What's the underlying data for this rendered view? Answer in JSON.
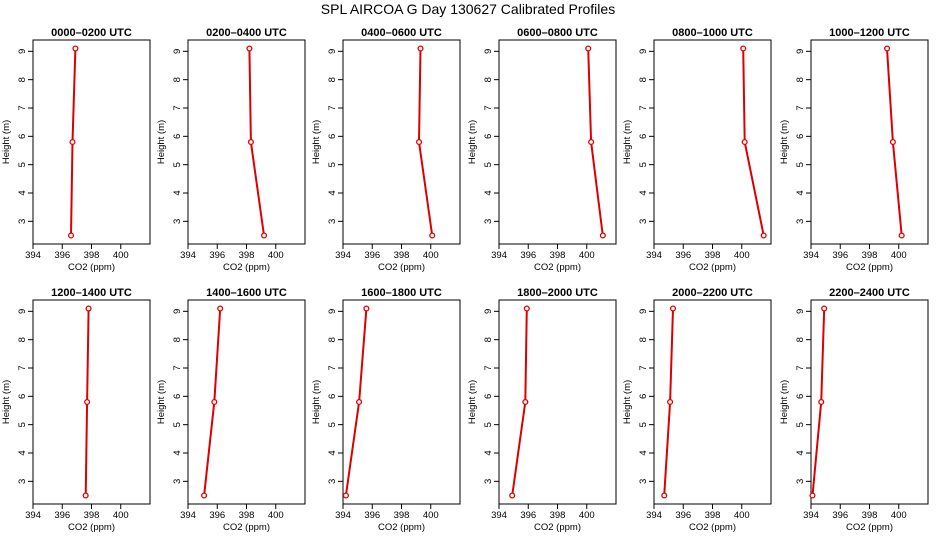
{
  "figure": {
    "title": "SPL AIRCOA G  Day 130627  Calibrated Profiles"
  },
  "chart_data": [
    {
      "type": "line",
      "title": "0000–0200 UTC",
      "xlabel": "CO2 (ppm)",
      "ylabel": "Height (m)",
      "xlim": [
        394,
        402
      ],
      "ylim": [
        2.2,
        9.4
      ],
      "xticks": [
        394,
        396,
        398,
        400
      ],
      "yticks": [
        3,
        4,
        5,
        6,
        7,
        8,
        9
      ],
      "series": [
        {
          "x": [
            396.6,
            396.7,
            396.9
          ],
          "y": [
            2.5,
            5.8,
            9.1
          ]
        }
      ]
    },
    {
      "type": "line",
      "title": "0200–0400 UTC",
      "xlabel": "CO2 (ppm)",
      "ylabel": "Height (m)",
      "xlim": [
        394,
        402
      ],
      "ylim": [
        2.2,
        9.4
      ],
      "xticks": [
        394,
        396,
        398,
        400
      ],
      "yticks": [
        3,
        4,
        5,
        6,
        7,
        8,
        9
      ],
      "series": [
        {
          "x": [
            399.2,
            398.3,
            398.2
          ],
          "y": [
            2.5,
            5.8,
            9.1
          ]
        }
      ]
    },
    {
      "type": "line",
      "title": "0400–0600 UTC",
      "xlabel": "CO2 (ppm)",
      "ylabel": "Height (m)",
      "xlim": [
        394,
        402
      ],
      "ylim": [
        2.2,
        9.4
      ],
      "xticks": [
        394,
        396,
        398,
        400
      ],
      "yticks": [
        3,
        4,
        5,
        6,
        7,
        8,
        9
      ],
      "series": [
        {
          "x": [
            400.1,
            399.2,
            399.3
          ],
          "y": [
            2.5,
            5.8,
            9.1
          ]
        }
      ]
    },
    {
      "type": "line",
      "title": "0600–0800 UTC",
      "xlabel": "CO2 (ppm)",
      "ylabel": "Height (m)",
      "xlim": [
        394,
        402
      ],
      "ylim": [
        2.2,
        9.4
      ],
      "xticks": [
        394,
        396,
        398,
        400
      ],
      "yticks": [
        3,
        4,
        5,
        6,
        7,
        8,
        9
      ],
      "series": [
        {
          "x": [
            401.1,
            400.3,
            400.1
          ],
          "y": [
            2.5,
            5.8,
            9.1
          ]
        }
      ]
    },
    {
      "type": "line",
      "title": "0800–1000 UTC",
      "xlabel": "CO2 (ppm)",
      "ylabel": "Height (m)",
      "xlim": [
        394,
        402
      ],
      "ylim": [
        2.2,
        9.4
      ],
      "xticks": [
        394,
        396,
        398,
        400
      ],
      "yticks": [
        3,
        4,
        5,
        6,
        7,
        8,
        9
      ],
      "series": [
        {
          "x": [
            401.5,
            400.2,
            400.1
          ],
          "y": [
            2.5,
            5.8,
            9.1
          ]
        }
      ]
    },
    {
      "type": "line",
      "title": "1000–1200 UTC",
      "xlabel": "CO2 (ppm)",
      "ylabel": "Height (m)",
      "xlim": [
        394,
        402
      ],
      "ylim": [
        2.2,
        9.4
      ],
      "xticks": [
        394,
        396,
        398,
        400
      ],
      "yticks": [
        3,
        4,
        5,
        6,
        7,
        8,
        9
      ],
      "series": [
        {
          "x": [
            400.2,
            399.6,
            399.2
          ],
          "y": [
            2.5,
            5.8,
            9.1
          ]
        }
      ]
    },
    {
      "type": "line",
      "title": "1200–1400 UTC",
      "xlabel": "CO2 (ppm)",
      "ylabel": "Height (m)",
      "xlim": [
        394,
        402
      ],
      "ylim": [
        2.2,
        9.4
      ],
      "xticks": [
        394,
        396,
        398,
        400
      ],
      "yticks": [
        3,
        4,
        5,
        6,
        7,
        8,
        9
      ],
      "series": [
        {
          "x": [
            397.6,
            397.7,
            397.8
          ],
          "y": [
            2.5,
            5.8,
            9.1
          ]
        }
      ]
    },
    {
      "type": "line",
      "title": "1400–1600 UTC",
      "xlabel": "CO2 (ppm)",
      "ylabel": "Height (m)",
      "xlim": [
        394,
        402
      ],
      "ylim": [
        2.2,
        9.4
      ],
      "xticks": [
        394,
        396,
        398,
        400
      ],
      "yticks": [
        3,
        4,
        5,
        6,
        7,
        8,
        9
      ],
      "series": [
        {
          "x": [
            395.1,
            395.8,
            396.2
          ],
          "y": [
            2.5,
            5.8,
            9.1
          ]
        }
      ]
    },
    {
      "type": "line",
      "title": "1600–1800 UTC",
      "xlabel": "CO2 (ppm)",
      "ylabel": "Height (m)",
      "xlim": [
        394,
        402
      ],
      "ylim": [
        2.2,
        9.4
      ],
      "xticks": [
        394,
        396,
        398,
        400
      ],
      "yticks": [
        3,
        4,
        5,
        6,
        7,
        8,
        9
      ],
      "series": [
        {
          "x": [
            394.2,
            395.1,
            395.6
          ],
          "y": [
            2.5,
            5.8,
            9.1
          ]
        }
      ]
    },
    {
      "type": "line",
      "title": "1800–2000 UTC",
      "xlabel": "CO2 (ppm)",
      "ylabel": "Height (m)",
      "xlim": [
        394,
        402
      ],
      "ylim": [
        2.2,
        9.4
      ],
      "xticks": [
        394,
        396,
        398,
        400
      ],
      "yticks": [
        3,
        4,
        5,
        6,
        7,
        8,
        9
      ],
      "series": [
        {
          "x": [
            394.9,
            395.8,
            395.9
          ],
          "y": [
            2.5,
            5.8,
            9.1
          ]
        }
      ]
    },
    {
      "type": "line",
      "title": "2000–2200 UTC",
      "xlabel": "CO2 (ppm)",
      "ylabel": "Height (m)",
      "xlim": [
        394,
        402
      ],
      "ylim": [
        2.2,
        9.4
      ],
      "xticks": [
        394,
        396,
        398,
        400
      ],
      "yticks": [
        3,
        4,
        5,
        6,
        7,
        8,
        9
      ],
      "series": [
        {
          "x": [
            394.7,
            395.1,
            395.3
          ],
          "y": [
            2.5,
            5.8,
            9.1
          ]
        }
      ]
    },
    {
      "type": "line",
      "title": "2200–2400 UTC",
      "xlabel": "CO2 (ppm)",
      "ylabel": "Height (m)",
      "xlim": [
        394,
        402
      ],
      "ylim": [
        2.2,
        9.4
      ],
      "xticks": [
        394,
        396,
        398,
        400
      ],
      "yticks": [
        3,
        4,
        5,
        6,
        7,
        8,
        9
      ],
      "series": [
        {
          "x": [
            394.1,
            394.7,
            394.9
          ],
          "y": [
            2.5,
            5.8,
            9.1
          ]
        }
      ]
    }
  ],
  "colors": {
    "series": "#dd0000",
    "axes": "#000000"
  }
}
